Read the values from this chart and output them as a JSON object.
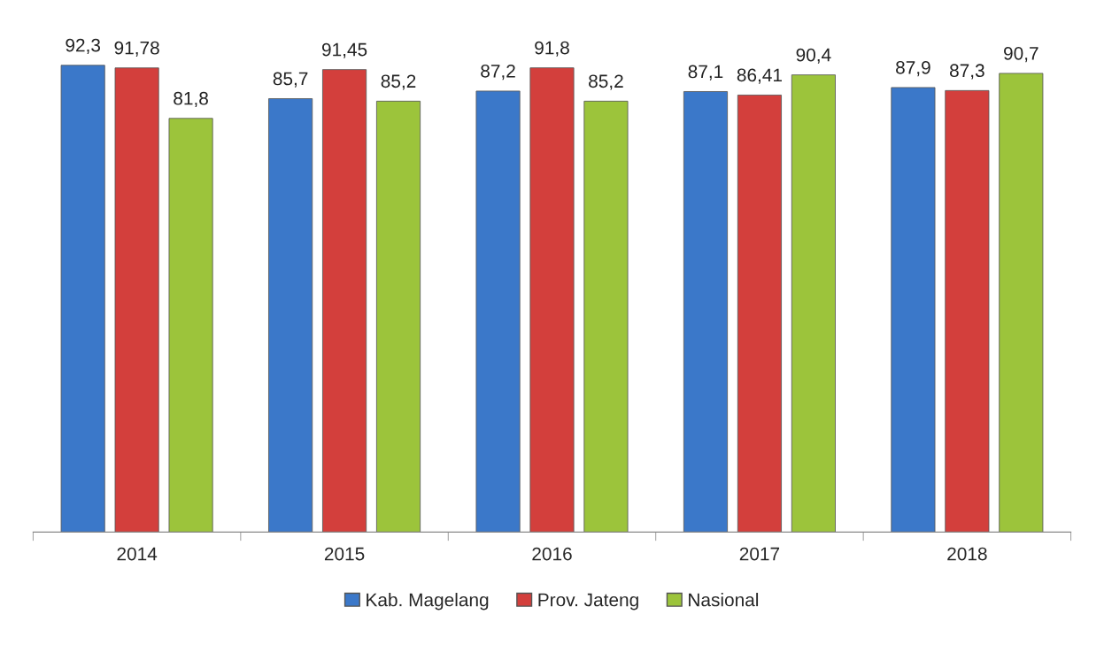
{
  "chart_data": {
    "type": "bar",
    "categories": [
      "2014",
      "2015",
      "2016",
      "2017",
      "2018"
    ],
    "series": [
      {
        "name": "Kab. Magelang",
        "color": "#3b78c9",
        "values": [
          92.3,
          85.7,
          87.2,
          87.1,
          87.9
        ],
        "value_labels": [
          "92,3",
          "85,7",
          "87,2",
          "87,1",
          "87,9"
        ]
      },
      {
        "name": "Prov. Jateng",
        "color": "#d33f3c",
        "values": [
          91.78,
          91.45,
          91.8,
          86.41,
          87.3
        ],
        "value_labels": [
          "91,78",
          "91,45",
          "91,8",
          "86,41",
          "87,3"
        ]
      },
      {
        "name": "Nasional",
        "color": "#9cc43b",
        "values": [
          81.8,
          85.2,
          85.2,
          90.4,
          90.7
        ],
        "value_labels": [
          "81,8",
          "85,2",
          "85,2",
          "90,4",
          "90,7"
        ]
      }
    ],
    "tick_labels": "x",
    "grid": false,
    "legend": "bottom"
  }
}
